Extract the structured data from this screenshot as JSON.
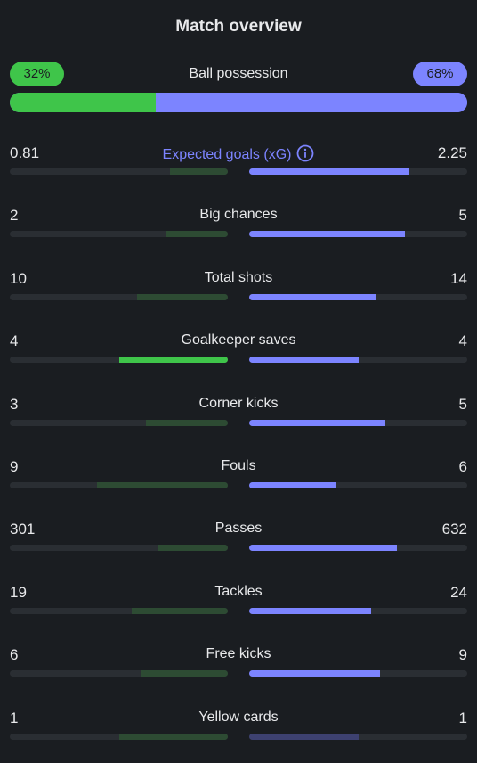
{
  "title": "Match overview",
  "possession": {
    "label": "Ball possession",
    "home_label": "32%",
    "away_label": "68%",
    "home": 32,
    "away": 68,
    "colors": {
      "home": "#3fc54a",
      "away": "#7c84ff"
    }
  },
  "stats": [
    {
      "label": "Expected goals (xG)",
      "home": "0.81",
      "away": "2.25",
      "home_num": 0.81,
      "away_num": 2.25,
      "accent": true,
      "icon": "info-icon"
    },
    {
      "label": "Big chances",
      "home": "2",
      "away": "5",
      "home_num": 2,
      "away_num": 5
    },
    {
      "label": "Total shots",
      "home": "10",
      "away": "14",
      "home_num": 10,
      "away_num": 14
    },
    {
      "label": "Goalkeeper saves",
      "home": "4",
      "away": "4",
      "home_num": 4,
      "away_num": 4,
      "home_strong": true
    },
    {
      "label": "Corner kicks",
      "home": "3",
      "away": "5",
      "home_num": 3,
      "away_num": 5
    },
    {
      "label": "Fouls",
      "home": "9",
      "away": "6",
      "home_num": 9,
      "away_num": 6
    },
    {
      "label": "Passes",
      "home": "301",
      "away": "632",
      "home_num": 301,
      "away_num": 632
    },
    {
      "label": "Tackles",
      "home": "19",
      "away": "24",
      "home_num": 19,
      "away_num": 24
    },
    {
      "label": "Free kicks",
      "home": "6",
      "away": "9",
      "home_num": 6,
      "away_num": 9
    },
    {
      "label": "Yellow cards",
      "home": "1",
      "away": "1",
      "home_num": 1,
      "away_num": 1,
      "away_dim": true
    }
  ]
}
